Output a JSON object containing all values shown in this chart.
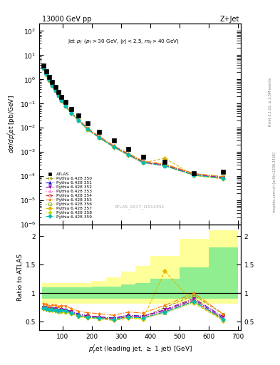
{
  "title_left": "13000 GeV pp",
  "title_right": "Z+Jet",
  "annotation": "Jet $p_T$ ($p_T > 30$ GeV, $|y| < 2.5$, $m_{ll} > 40$ GeV)",
  "atlas_label": "ATLAS_2017_I1514251",
  "xlabel": "$p_T^{J}$et (leading jet, $\\geq$ 1 jet) [GeV]",
  "ylabel_main": "$d\\sigma/dp_T^{J}$et [pb/GeV]",
  "ylabel_ratio": "Ratio to ATLAS",
  "x_pts": [
    35,
    45,
    55,
    65,
    75,
    85,
    95,
    110,
    130,
    155,
    185,
    225,
    275,
    325,
    375,
    450,
    550,
    650
  ],
  "bin_widths": [
    10,
    10,
    10,
    10,
    10,
    10,
    10,
    20,
    20,
    30,
    30,
    50,
    50,
    50,
    50,
    100,
    100,
    100
  ],
  "atlas_data": [
    3.8,
    2.2,
    1.3,
    0.78,
    0.5,
    0.31,
    0.19,
    0.115,
    0.06,
    0.033,
    0.015,
    0.007,
    0.003,
    0.0013,
    0.00065,
    0.0004,
    0.00013,
    0.00015
  ],
  "series": [
    {
      "label": "Pythia 6.428 350",
      "color": "#999900",
      "marker": "s",
      "mfc": "none",
      "linestyle": "--"
    },
    {
      "label": "Pythia 6.428 351",
      "color": "#1111cc",
      "marker": "^",
      "mfc": "#1111cc",
      "linestyle": "-."
    },
    {
      "label": "Pythia 6.428 352",
      "color": "#9900aa",
      "marker": "v",
      "mfc": "#9900aa",
      "linestyle": "-."
    },
    {
      "label": "Pythia 6.428 353",
      "color": "#ff66bb",
      "marker": "^",
      "mfc": "none",
      "linestyle": ":"
    },
    {
      "label": "Pythia 6.428 354",
      "color": "#cc2222",
      "marker": "o",
      "mfc": "none",
      "linestyle": "--"
    },
    {
      "label": "Pythia 6.428 355",
      "color": "#ff7700",
      "marker": "*",
      "mfc": "#ff7700",
      "linestyle": "-."
    },
    {
      "label": "Pythia 6.428 356",
      "color": "#77aa00",
      "marker": "s",
      "mfc": "none",
      "linestyle": ":"
    },
    {
      "label": "Pythia 6.428 357",
      "color": "#ddbb00",
      "marker": "D",
      "mfc": "#ddbb00",
      "linestyle": "--"
    },
    {
      "label": "Pythia 6.428 358",
      "color": "#bbdd00",
      "marker": "o",
      "mfc": "#bbdd00",
      "linestyle": ":"
    },
    {
      "label": "Pythia 6.428 359",
      "color": "#00bbbb",
      "marker": "D",
      "mfc": "#00bbbb",
      "linestyle": "-."
    }
  ],
  "mc_data": [
    [
      2.85,
      1.62,
      0.93,
      0.56,
      0.36,
      0.215,
      0.135,
      0.08,
      0.04,
      0.02,
      0.0088,
      0.004,
      0.00165,
      0.00078,
      0.00038,
      0.0003,
      0.000125,
      9.5e-05
    ],
    [
      2.9,
      1.65,
      0.95,
      0.57,
      0.365,
      0.22,
      0.138,
      0.082,
      0.041,
      0.021,
      0.0091,
      0.0041,
      0.0017,
      0.0008,
      0.00039,
      0.00028,
      0.000115,
      8.5e-05
    ],
    [
      2.88,
      1.64,
      0.94,
      0.565,
      0.362,
      0.218,
      0.136,
      0.081,
      0.0405,
      0.0205,
      0.009,
      0.00408,
      0.00168,
      0.00079,
      0.000385,
      0.000285,
      0.000118,
      8.8e-05
    ],
    [
      2.87,
      1.63,
      0.935,
      0.56,
      0.358,
      0.216,
      0.134,
      0.08,
      0.0398,
      0.0203,
      0.0089,
      0.00402,
      0.00165,
      0.00077,
      0.000375,
      0.000275,
      0.000114,
      8.4e-05
    ],
    [
      2.86,
      1.625,
      0.932,
      0.558,
      0.356,
      0.214,
      0.133,
      0.079,
      0.0395,
      0.02,
      0.0088,
      0.00398,
      0.00163,
      0.00076,
      0.00037,
      0.00027,
      0.000112,
      8.2e-05
    ],
    [
      3.1,
      1.78,
      1.02,
      0.615,
      0.394,
      0.238,
      0.149,
      0.089,
      0.044,
      0.0225,
      0.0099,
      0.00448,
      0.00184,
      0.00087,
      0.000425,
      0.000315,
      0.00013,
      9.5e-05
    ],
    [
      2.82,
      1.6,
      0.92,
      0.552,
      0.352,
      0.212,
      0.132,
      0.0785,
      0.039,
      0.0198,
      0.0086,
      0.0039,
      0.0016,
      0.00075,
      0.000363,
      0.000264,
      0.000109,
      8e-05
    ],
    [
      2.78,
      1.58,
      0.91,
      0.545,
      0.348,
      0.209,
      0.13,
      0.077,
      0.0385,
      0.0195,
      0.0085,
      0.00385,
      0.00157,
      0.00073,
      0.000355,
      0.000555,
      0.000107,
      7.8e-05
    ],
    [
      2.8,
      1.59,
      0.915,
      0.548,
      0.35,
      0.211,
      0.131,
      0.0778,
      0.0388,
      0.0197,
      0.00855,
      0.00387,
      0.00158,
      0.00074,
      0.000358,
      0.00026,
      0.000108,
      7.9e-05
    ],
    [
      2.84,
      1.615,
      0.928,
      0.556,
      0.355,
      0.213,
      0.133,
      0.0792,
      0.0393,
      0.0199,
      0.00868,
      0.00393,
      0.00162,
      0.00076,
      0.000368,
      0.000268,
      0.000111,
      8.1e-05
    ]
  ],
  "inner_band_lo": [
    0.9,
    0.9,
    0.9,
    0.9,
    0.9,
    0.9,
    0.9,
    0.9,
    0.9,
    0.9,
    0.9,
    0.9,
    0.9,
    0.9,
    0.9,
    0.9,
    0.9,
    0.9
  ],
  "inner_band_hi": [
    1.1,
    1.1,
    1.1,
    1.1,
    1.1,
    1.1,
    1.1,
    1.1,
    1.1,
    1.1,
    1.1,
    1.12,
    1.12,
    1.15,
    1.18,
    1.25,
    1.45,
    1.8
  ],
  "outer_band_lo": [
    0.82,
    0.82,
    0.82,
    0.82,
    0.82,
    0.82,
    0.82,
    0.82,
    0.82,
    0.82,
    0.82,
    0.82,
    0.82,
    0.82,
    0.82,
    0.82,
    0.82,
    0.82
  ],
  "outer_band_hi": [
    1.18,
    1.18,
    1.18,
    1.18,
    1.18,
    1.18,
    1.18,
    1.18,
    1.18,
    1.18,
    1.18,
    1.22,
    1.28,
    1.38,
    1.48,
    1.65,
    1.95,
    2.1
  ],
  "band_inner_color": "#90ee90",
  "band_outer_color": "#ffff99",
  "ylim_main": [
    1e-06,
    200
  ],
  "ylim_ratio": [
    0.35,
    2.2
  ],
  "ratio_yticks": [
    0.5,
    1.0,
    1.5,
    2.0
  ],
  "xmin": 20,
  "xmax": 710
}
